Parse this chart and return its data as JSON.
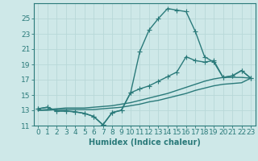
{
  "xlabel": "Humidex (Indice chaleur)",
  "bg_color": "#cee8e8",
  "line_color": "#2a7a7a",
  "grid_color": "#b8d8d8",
  "x": [
    0,
    1,
    2,
    3,
    4,
    5,
    6,
    7,
    8,
    9,
    10,
    11,
    12,
    13,
    14,
    15,
    16,
    17,
    18,
    19,
    20,
    21,
    22,
    23
  ],
  "line1": [
    13.2,
    13.4,
    12.9,
    12.9,
    12.8,
    12.6,
    12.2,
    11.1,
    12.7,
    13.0,
    15.3,
    20.7,
    23.5,
    25.0,
    26.3,
    26.1,
    25.9,
    23.3,
    20.0,
    19.3,
    17.3,
    17.5,
    18.2,
    17.2
  ],
  "line2": [
    13.2,
    13.4,
    12.9,
    12.9,
    12.8,
    12.6,
    12.2,
    11.1,
    12.7,
    13.0,
    15.3,
    15.8,
    16.2,
    16.8,
    17.4,
    18.0,
    20.0,
    19.5,
    19.3,
    19.5,
    17.3,
    17.5,
    18.2,
    17.2
  ],
  "line3": [
    13.0,
    13.1,
    13.2,
    13.3,
    13.3,
    13.3,
    13.4,
    13.5,
    13.6,
    13.8,
    14.0,
    14.3,
    14.6,
    14.9,
    15.2,
    15.6,
    16.0,
    16.4,
    16.8,
    17.1,
    17.3,
    17.3,
    17.3,
    17.2
  ],
  "line4": [
    13.0,
    13.0,
    13.1,
    13.1,
    13.1,
    13.1,
    13.1,
    13.2,
    13.3,
    13.4,
    13.6,
    13.8,
    14.1,
    14.3,
    14.6,
    14.9,
    15.2,
    15.6,
    15.9,
    16.2,
    16.4,
    16.5,
    16.6,
    17.2
  ],
  "ylim": [
    11,
    27
  ],
  "yticks": [
    11,
    13,
    15,
    17,
    19,
    21,
    23,
    25
  ],
  "xticks": [
    0,
    1,
    2,
    3,
    4,
    5,
    6,
    7,
    8,
    9,
    10,
    11,
    12,
    13,
    14,
    15,
    16,
    17,
    18,
    19,
    20,
    21,
    22,
    23
  ],
  "markersize": 2.5,
  "linewidth": 1.0,
  "xlabel_fontsize": 7,
  "tick_fontsize": 6.5
}
